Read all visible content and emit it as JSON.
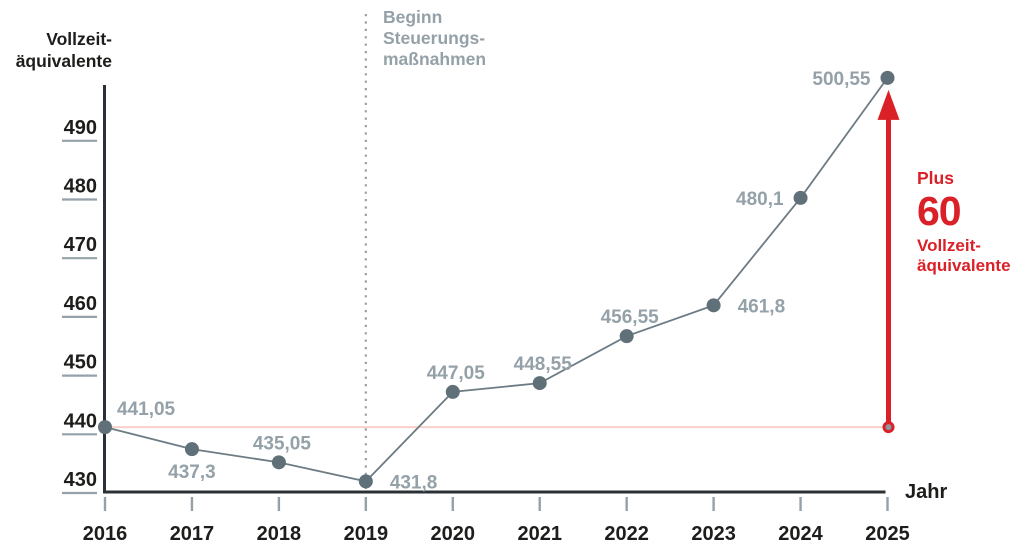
{
  "colors": {
    "red": "#da2128",
    "pink": "#f7d0cc",
    "line_gray": "#6d7c84",
    "point_gray": "#5f7079",
    "label_gray": "#94a1a8",
    "axis_dark": "#2b3135",
    "text_dark": "#1d1d1b"
  },
  "y_axis_title_lines": [
    "Vollzeit-",
    "äquivalente"
  ],
  "x_axis_title": "Jahr",
  "annotation": {
    "lines": [
      "Beginn",
      "Steuerungs-",
      "maßnahmen"
    ],
    "year": "2019"
  },
  "delta_callout": {
    "prefix": "Plus",
    "value": "60",
    "unit_lines": [
      "Vollzeit-",
      "äquivalente"
    ]
  },
  "chart_data": {
    "type": "line",
    "title": "Vollzeitäquivalente nach Jahr",
    "xlabel": "Jahr",
    "ylabel": "Vollzeitäquivalente",
    "x": [
      "2016",
      "2017",
      "2018",
      "2019",
      "2020",
      "2021",
      "2022",
      "2023",
      "2024",
      "2025"
    ],
    "values": [
      441.05,
      437.3,
      435.05,
      431.8,
      447.05,
      448.55,
      456.55,
      461.8,
      480.1,
      500.55
    ],
    "point_labels": [
      "441,05",
      "437,3",
      "435,05",
      "431,8",
      "447,05",
      "448,55",
      "456,55",
      "461,8",
      "480,1",
      "500,55"
    ],
    "label_placement": [
      "above-right",
      "below",
      "above",
      "right",
      "above",
      "above",
      "above",
      "right",
      "left",
      "left"
    ],
    "yticks": [
      430,
      440,
      450,
      460,
      470,
      480,
      490
    ],
    "ylim": [
      430,
      505
    ],
    "grid": false,
    "legend": false,
    "baseline_reference": "horizontal light-red line at first value 441,05 spanning full width",
    "annotations": [
      {
        "type": "dotted-vline",
        "x": "2019",
        "label": "Beginn Steuerungsmaßnahmen"
      },
      {
        "type": "delta-arrow",
        "from_value": 441.05,
        "to_value": 500.55,
        "label": "Plus 60 Vollzeitäquivalente"
      }
    ]
  }
}
